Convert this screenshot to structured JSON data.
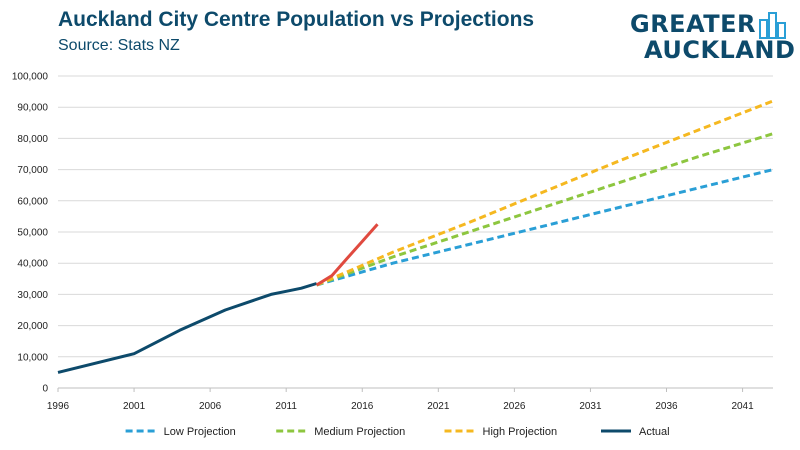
{
  "header": {
    "title": "Auckland City Centre Population vs Projections",
    "subtitle": "Source: Stats NZ"
  },
  "logo": {
    "line1": "GREATER",
    "line2": "AUCKLAND",
    "icon": "city-skyline-icon",
    "color": "#0d4a6b"
  },
  "chart_data": {
    "type": "line",
    "xlim": [
      1996,
      2043
    ],
    "ylim": [
      0,
      100000
    ],
    "xticks": [
      1996,
      2001,
      2006,
      2011,
      2016,
      2021,
      2026,
      2031,
      2036,
      2041
    ],
    "yticks": [
      0,
      10000,
      20000,
      30000,
      40000,
      50000,
      60000,
      70000,
      80000,
      90000,
      100000
    ],
    "ytick_labels": [
      "0",
      "10,000",
      "20,000",
      "30,000",
      "40,000",
      "50,000",
      "60,000",
      "70,000",
      "80,000",
      "90,000",
      "100,000"
    ],
    "grid": "horizontal",
    "legend_position": "bottom",
    "series": [
      {
        "name": "Low Projection",
        "style": "dashed",
        "color": "#2a9fd6",
        "points": [
          [
            2013,
            33000
          ],
          [
            2018,
            40000
          ],
          [
            2023,
            46000
          ],
          [
            2028,
            52000
          ],
          [
            2033,
            58000
          ],
          [
            2038,
            64000
          ],
          [
            2043,
            70000
          ]
        ]
      },
      {
        "name": "Medium Projection",
        "style": "dashed",
        "color": "#8dc63f",
        "points": [
          [
            2013,
            33000
          ],
          [
            2018,
            42000
          ],
          [
            2023,
            50000
          ],
          [
            2028,
            58000
          ],
          [
            2033,
            66000
          ],
          [
            2038,
            74000
          ],
          [
            2043,
            81500
          ]
        ]
      },
      {
        "name": "High Projection",
        "style": "dashed",
        "color": "#f5b820",
        "points": [
          [
            2013,
            33000
          ],
          [
            2018,
            43500
          ],
          [
            2023,
            53000
          ],
          [
            2028,
            63000
          ],
          [
            2033,
            73000
          ],
          [
            2038,
            82500
          ],
          [
            2043,
            92000
          ]
        ]
      },
      {
        "name": "Actual",
        "style": "solid",
        "color": "#0d4a6b",
        "points": [
          [
            1996,
            5000
          ],
          [
            2001,
            11000
          ],
          [
            2004,
            18500
          ],
          [
            2007,
            25000
          ],
          [
            2010,
            30000
          ],
          [
            2011,
            31000
          ],
          [
            2012,
            32000
          ],
          [
            2013,
            33500
          ]
        ]
      },
      {
        "style": "solid",
        "color": "#e04a3f",
        "points": [
          [
            2013,
            33000
          ],
          [
            2014,
            36000
          ],
          [
            2015,
            41500
          ],
          [
            2016,
            47000
          ],
          [
            2017,
            52500
          ]
        ]
      }
    ]
  }
}
